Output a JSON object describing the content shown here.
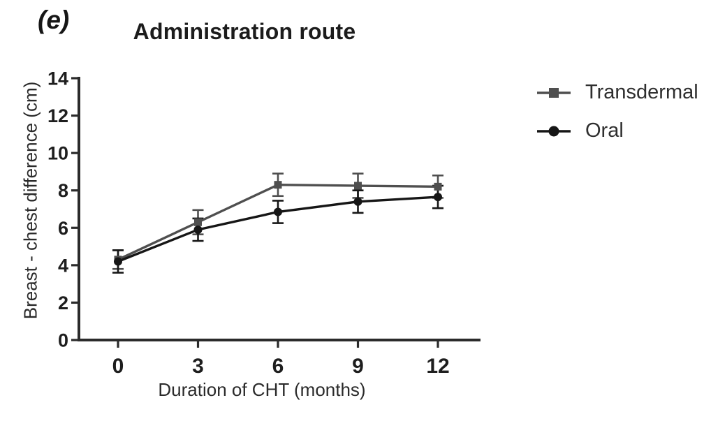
{
  "panel_label": "(e)",
  "chart_data": {
    "type": "line",
    "title": "Administration route",
    "xlabel": "Duration of CHT (months)",
    "ylabel": "Breast - chest difference (cm)",
    "categories": [
      "0",
      "3",
      "6",
      "9",
      "12"
    ],
    "x_values": [
      0,
      3,
      6,
      9,
      12
    ],
    "yticks": [
      0,
      2,
      4,
      6,
      8,
      10,
      12,
      14
    ],
    "ylim": [
      0,
      14
    ],
    "grid": false,
    "legend_position": "right",
    "axis_color": "#2b2b2b",
    "tick_label_color": "#1e1e1e",
    "series": [
      {
        "name": "Transdermal",
        "marker": "square",
        "color": "#4f4f4f",
        "values": [
          4.3,
          6.3,
          8.3,
          8.25,
          8.2
        ],
        "errors": [
          0.5,
          0.65,
          0.6,
          0.65,
          0.6
        ]
      },
      {
        "name": "Oral",
        "marker": "circle",
        "color": "#161616",
        "values": [
          4.2,
          5.9,
          6.85,
          7.4,
          7.65
        ],
        "errors": [
          0.6,
          0.6,
          0.6,
          0.6,
          0.6
        ]
      }
    ]
  }
}
